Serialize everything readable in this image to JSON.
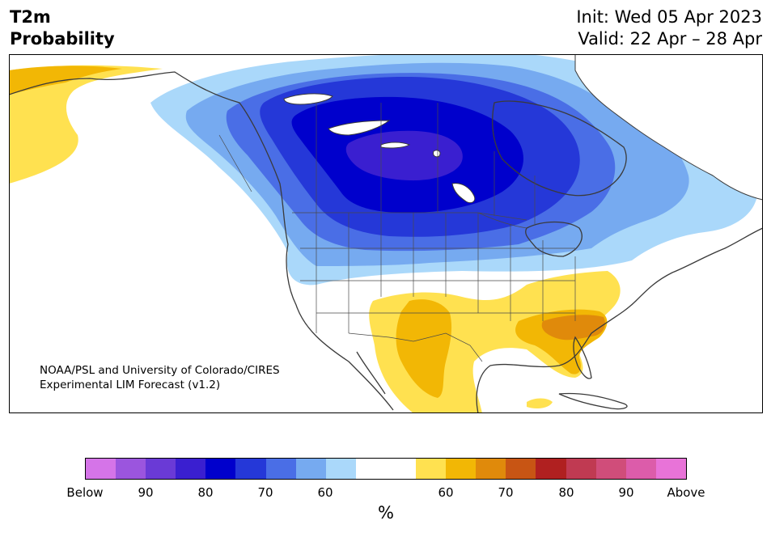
{
  "header": {
    "variable": "T2m",
    "product": "Probability",
    "init": "Init: Wed 05 Apr 2023",
    "valid": "Valid: 22 Apr – 28 Apr"
  },
  "credit": {
    "line1": "NOAA/PSL and University of Colorado/CIRES",
    "line2": "Experimental LIM Forecast (v1.2)"
  },
  "colorbar": {
    "unit": "%",
    "tick_labels": [
      "Below",
      "90",
      "80",
      "70",
      "60",
      "60",
      "70",
      "80",
      "90",
      "Above"
    ],
    "colors": {
      "below_extreme": "#d574e8",
      "below_90": "#9b55de",
      "below_85": "#6a3ad6",
      "below_80": "#3a1fd0",
      "below_75": "#0000cc",
      "below_70": "#2538d8",
      "below_65": "#4a6ee6",
      "below_60": "#76aaf0",
      "below_55": "#aad8fa",
      "neutral": "#ffffff",
      "above_55": "#ffe150",
      "above_60": "#f2b705",
      "above_65": "#e08a0b",
      "above_70": "#c85514",
      "above_75": "#b02020",
      "above_80": "#c03a52",
      "above_85": "#d04d7a",
      "above_90": "#dc5caa",
      "above_extreme": "#e873d8"
    }
  }
}
